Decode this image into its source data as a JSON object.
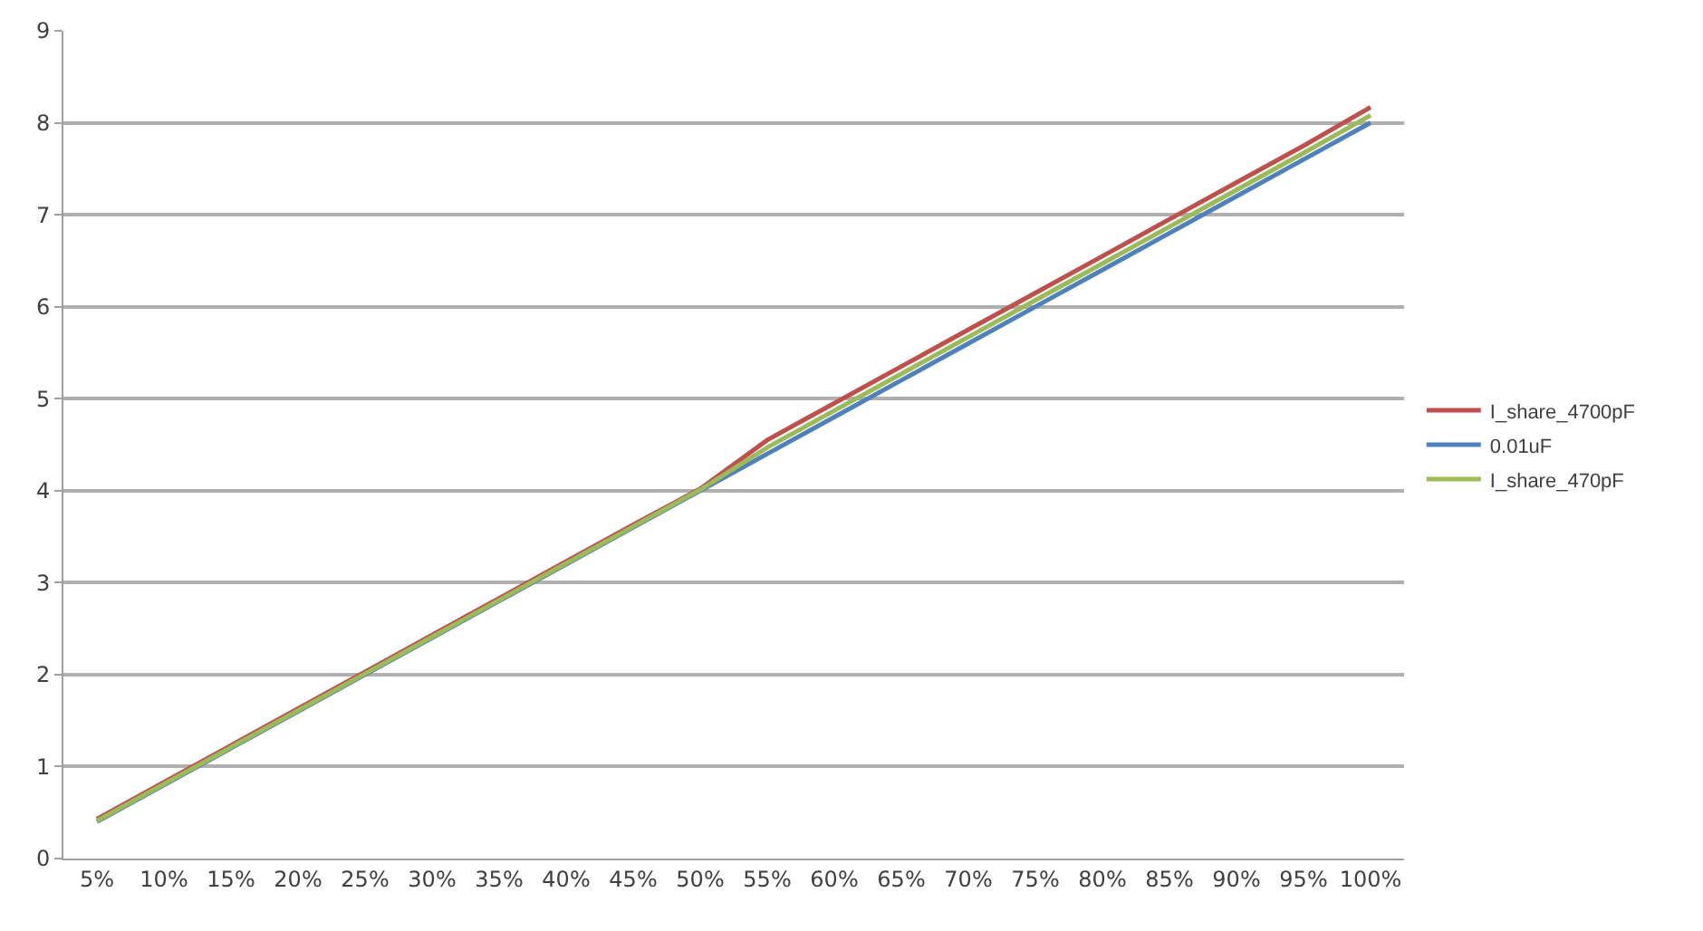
{
  "chart_data": {
    "type": "line",
    "categories": [
      "5%",
      "10%",
      "15%",
      "20%",
      "25%",
      "30%",
      "35%",
      "40%",
      "45%",
      "50%",
      "55%",
      "60%",
      "65%",
      "70%",
      "75%",
      "80%",
      "85%",
      "90%",
      "95%",
      "100%"
    ],
    "series": [
      {
        "name": "I_share_4700pF",
        "color": "#c0504d",
        "values": [
          0.43,
          0.83,
          1.23,
          1.63,
          2.03,
          2.43,
          2.83,
          3.23,
          3.63,
          4.02,
          4.55,
          4.95,
          5.35,
          5.75,
          6.15,
          6.55,
          6.95,
          7.35,
          7.75,
          8.17
        ]
      },
      {
        "name": "0.01uF",
        "color": "#4f81bd",
        "values": [
          0.4,
          0.8,
          1.2,
          1.6,
          2.0,
          2.4,
          2.8,
          3.2,
          3.6,
          4.0,
          4.4,
          4.8,
          5.2,
          5.6,
          6.0,
          6.4,
          6.8,
          7.2,
          7.6,
          8.0
        ]
      },
      {
        "name": "I_share_470pF",
        "color": "#9bbb59",
        "values": [
          0.41,
          0.81,
          1.21,
          1.61,
          2.01,
          2.41,
          2.81,
          3.21,
          3.61,
          4.01,
          4.47,
          4.87,
          5.27,
          5.67,
          6.07,
          6.47,
          6.87,
          7.27,
          7.67,
          8.08
        ]
      }
    ],
    "ylim": [
      0,
      9
    ],
    "yticks": [
      0,
      1,
      2,
      3,
      4,
      5,
      6,
      7,
      8,
      9
    ],
    "grid": "y",
    "legend": "right",
    "marker": "none",
    "line_style": "solid"
  }
}
